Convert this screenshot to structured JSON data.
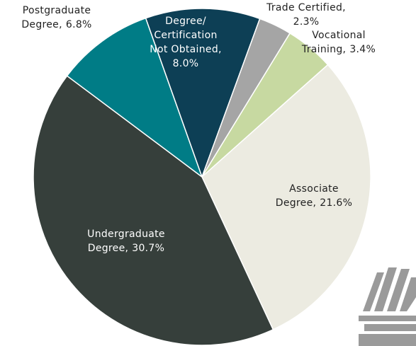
{
  "chart_data": {
    "type": "pie",
    "categories": [
      "Degree/ Certification Not Obtained,",
      "Trade Certified,",
      "Vocational Training,",
      "Associate Degree,",
      "Undergraduate Degree,",
      "Postgraduate Degree,"
    ],
    "values": [
      8.0,
      2.3,
      3.4,
      21.6,
      30.7,
      6.8
    ],
    "value_labels": [
      "8.0%",
      "2.3%",
      "3.4%",
      "21.6%",
      "30.7%",
      "6.8%"
    ],
    "colors": [
      "#0d3f55",
      "#a5a5a5",
      "#c7d9a1",
      "#ecebe1",
      "#363f3b",
      "#007c86"
    ]
  }
}
